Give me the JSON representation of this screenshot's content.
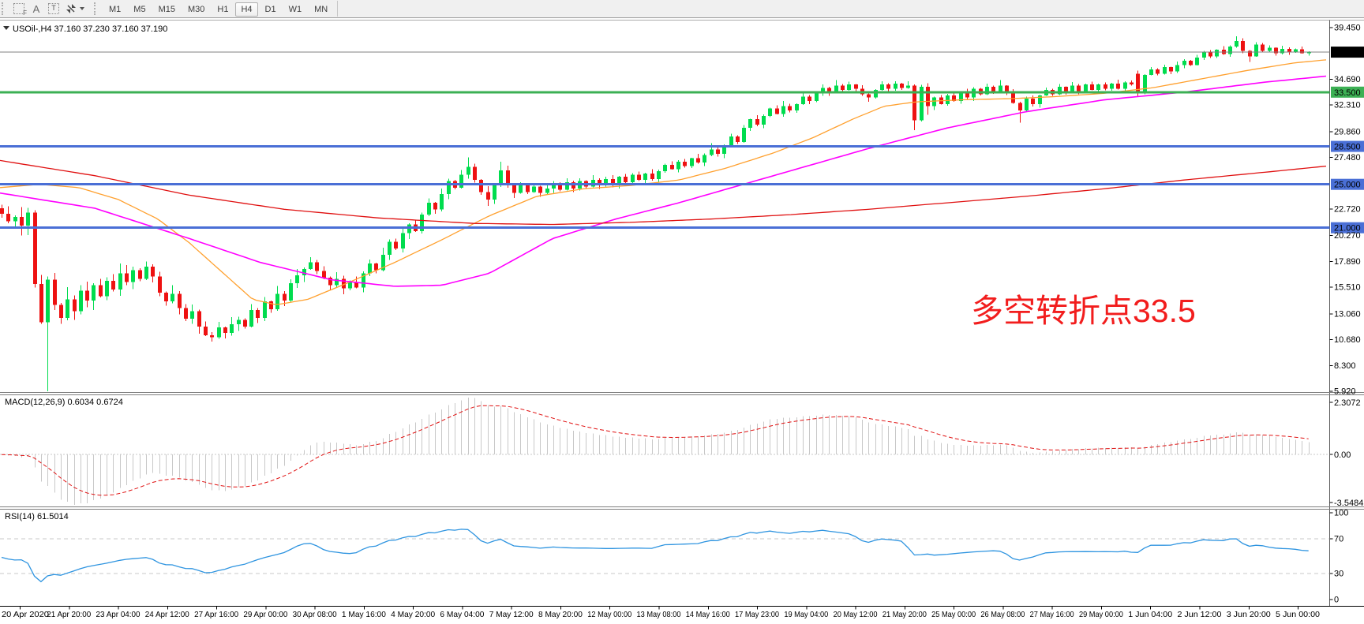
{
  "toolbar": {
    "icons": [
      {
        "name": "selection-f-icon",
        "glyph": "F"
      },
      {
        "name": "font-a-icon",
        "glyph": "A"
      },
      {
        "name": "text-box-icon",
        "glyph": "T"
      },
      {
        "name": "arrow-tools-icon",
        "glyph": ""
      }
    ],
    "timeframes": [
      "M1",
      "M5",
      "M15",
      "M30",
      "H1",
      "H4",
      "D1",
      "W1",
      "MN"
    ],
    "active_timeframe": "H4"
  },
  "chart": {
    "title": {
      "symbol": "USOil-",
      "period": "H4",
      "ohlc": "37.160 37.230 37.160 37.190",
      "title_text": "USOil-,H4  37.160 37.230 37.160 37.190"
    },
    "annotation": {
      "text": "多空转折点33.5",
      "color": "#f21d1d"
    },
    "y_ticks": [
      "39.450",
      "34.690",
      "32.310",
      "29.860",
      "27.480",
      "22.720",
      "20.270",
      "17.890",
      "15.510",
      "13.060",
      "10.680",
      "8.300",
      "5.920"
    ],
    "hlines": [
      {
        "price": 37.19,
        "label": "37.190",
        "kind": "last-price",
        "color": "#808080",
        "box": "#000000",
        "fg": "#ffffff",
        "w": 1
      },
      {
        "price": 33.5,
        "label": "33.500",
        "kind": "level",
        "color": "#3CB054",
        "box": "#3CB054",
        "fg": "#ffffff",
        "w": 3
      },
      {
        "price": 28.5,
        "label": "28.500",
        "kind": "level",
        "color": "#4A6FD6",
        "box": "#4A6FD6",
        "fg": "#ffffff",
        "w": 3
      },
      {
        "price": 25.0,
        "label": "25.000",
        "kind": "level",
        "color": "#4A6FD6",
        "box": "#4A6FD6",
        "fg": "#ffffff",
        "w": 3
      },
      {
        "price": 21.0,
        "label": "21.000",
        "kind": "level",
        "color": "#4A6FD6",
        "box": "#4A6FD6",
        "fg": "#ffffff",
        "w": 3
      }
    ],
    "ma_lines": [
      {
        "name": "ma-orange",
        "color": "#FFA02E",
        "width": 1.3,
        "anchors": [
          [
            0,
            24.7
          ],
          [
            50,
            25.0
          ],
          [
            100,
            24.7
          ],
          [
            150,
            23.6
          ],
          [
            200,
            21.8
          ],
          [
            240,
            19.6
          ],
          [
            280,
            17.0
          ],
          [
            320,
            14.4
          ],
          [
            350,
            13.9
          ],
          [
            390,
            14.4
          ],
          [
            440,
            15.9
          ],
          [
            500,
            17.8
          ],
          [
            560,
            19.9
          ],
          [
            620,
            22.1
          ],
          [
            680,
            23.9
          ],
          [
            740,
            24.6
          ],
          [
            800,
            24.9
          ],
          [
            860,
            25.4
          ],
          [
            920,
            26.5
          ],
          [
            980,
            27.9
          ],
          [
            1030,
            29.3
          ],
          [
            1080,
            31.0
          ],
          [
            1120,
            32.2
          ],
          [
            1160,
            32.6
          ],
          [
            1220,
            32.8
          ],
          [
            1280,
            32.9
          ],
          [
            1340,
            33.1
          ],
          [
            1400,
            33.4
          ],
          [
            1460,
            33.9
          ],
          [
            1520,
            34.7
          ],
          [
            1580,
            35.5
          ],
          [
            1640,
            36.2
          ],
          [
            1683,
            36.5
          ]
        ]
      },
      {
        "name": "ma-magenta",
        "color": "#FF00FF",
        "width": 1.6,
        "anchors": [
          [
            0,
            24.2
          ],
          [
            120,
            22.8
          ],
          [
            240,
            20.0
          ],
          [
            330,
            17.8
          ],
          [
            420,
            16.2
          ],
          [
            500,
            15.6
          ],
          [
            560,
            15.7
          ],
          [
            620,
            16.8
          ],
          [
            700,
            20.0
          ],
          [
            780,
            21.8
          ],
          [
            860,
            23.3
          ],
          [
            980,
            25.8
          ],
          [
            1100,
            28.3
          ],
          [
            1200,
            30.2
          ],
          [
            1300,
            31.7
          ],
          [
            1400,
            32.8
          ],
          [
            1500,
            33.5
          ],
          [
            1600,
            34.4
          ],
          [
            1683,
            35.0
          ]
        ]
      },
      {
        "name": "ma-red",
        "color": "#E01010",
        "width": 1.3,
        "anchors": [
          [
            0,
            27.2
          ],
          [
            120,
            25.8
          ],
          [
            240,
            24.0
          ],
          [
            360,
            22.7
          ],
          [
            480,
            21.9
          ],
          [
            600,
            21.4
          ],
          [
            700,
            21.3
          ],
          [
            800,
            21.5
          ],
          [
            900,
            21.8
          ],
          [
            1000,
            22.2
          ],
          [
            1100,
            22.7
          ],
          [
            1200,
            23.3
          ],
          [
            1300,
            23.9
          ],
          [
            1400,
            24.6
          ],
          [
            1500,
            25.4
          ],
          [
            1600,
            26.1
          ],
          [
            1683,
            26.7
          ]
        ]
      }
    ]
  },
  "chart_data": {
    "type": "candlestick",
    "symbol": "USOil",
    "period": "H4",
    "bull_color": "#00DC4E",
    "bear_color": "#EE1111",
    "open_first": 22.8,
    "closes": [
      22.3,
      21.6,
      22.0,
      21.2,
      22.4,
      15.8,
      12.3,
      16.2,
      13.9,
      12.7,
      14.4,
      13.3,
      15.2,
      14.3,
      15.7,
      14.7,
      16.1,
      15.3,
      16.8,
      16.0,
      17.1,
      16.3,
      17.4,
      16.5,
      15.0,
      14.2,
      14.9,
      13.6,
      12.6,
      13.3,
      11.9,
      11.1,
      10.9,
      11.8,
      11.3,
      12.1,
      12.5,
      11.9,
      13.4,
      12.7,
      14.2,
      13.5,
      14.9,
      14.3,
      15.9,
      16.6,
      17.2,
      17.8,
      17.0,
      16.4,
      15.7,
      16.3,
      15.4,
      16.0,
      15.5,
      16.8,
      17.7,
      17.1,
      18.5,
      19.7,
      19.1,
      20.5,
      21.3,
      20.7,
      22.2,
      23.3,
      22.7,
      24.1,
      25.3,
      24.7,
      25.9,
      26.6,
      25.4,
      24.3,
      23.6,
      24.9,
      26.3,
      25.0,
      24.2,
      24.9,
      24.3,
      24.8,
      24.2,
      24.6,
      25.1,
      24.5,
      25.2,
      24.6,
      25.3,
      24.8,
      25.4,
      24.9,
      25.5,
      25.0,
      25.7,
      25.2,
      25.9,
      25.4,
      26.0,
      25.5,
      26.2,
      26.8,
      26.4,
      27.1,
      26.7,
      27.4,
      27.0,
      27.7,
      28.2,
      27.8,
      28.6,
      29.4,
      28.9,
      30.2,
      31.0,
      30.5,
      31.3,
      32.0,
      31.5,
      32.2,
      31.8,
      32.4,
      33.1,
      32.7,
      33.4,
      33.9,
      33.5,
      34.1,
      33.7,
      34.2,
      33.8,
      33.3,
      33.0,
      33.7,
      34.2,
      33.8,
      34.3,
      33.9,
      34.1,
      30.9,
      34.0,
      32.2,
      33.0,
      32.4,
      33.2,
      32.7,
      33.5,
      33.0,
      33.8,
      33.3,
      34.0,
      33.6,
      34.1,
      33.4,
      32.5,
      31.8,
      32.9,
      32.4,
      33.2,
      33.7,
      33.3,
      34.0,
      33.5,
      34.1,
      33.6,
      34.2,
      33.7,
      34.2,
      33.8,
      34.3,
      33.8,
      34.4,
      34.2,
      33.6,
      35.1,
      35.6,
      35.2,
      35.8,
      35.4,
      36.0,
      36.4,
      36.0,
      36.7,
      37.2,
      36.8,
      37.4,
      37.0,
      37.7,
      38.2,
      37.3,
      36.8,
      37.9,
      37.3,
      37.6,
      37.1,
      37.5,
      37.2,
      37.45,
      37.1,
      37.19
    ],
    "wick_up": [
      0.25,
      0.5,
      0.1,
      0.65,
      0.3,
      0.15,
      0.55,
      0.2,
      0.4,
      0.1,
      0.75,
      0.25,
      0.35,
      0.6,
      0.15,
      0.45
    ],
    "wick_dn": [
      0.35,
      0.15,
      0.55,
      0.2,
      0.45,
      0.65,
      0.1,
      0.3,
      0.15,
      0.5,
      0.25,
      0.6,
      0.2,
      0.1,
      0.5,
      0.3
    ],
    "wick_scale_anchors": [
      [
        0,
        1.3
      ],
      [
        8,
        1.6
      ],
      [
        20,
        1.1
      ],
      [
        40,
        1.0
      ],
      [
        60,
        0.85
      ],
      [
        90,
        0.6
      ],
      [
        120,
        0.55
      ],
      [
        150,
        0.5
      ],
      [
        199,
        0.45
      ]
    ],
    "overrides": {
      "3": {
        "low": 20.3
      },
      "7": {
        "low": 5.92
      },
      "18": {
        "high": 17.7
      },
      "22": {
        "high": 17.9
      },
      "32": {
        "low": 10.5
      },
      "47": {
        "high": 18.3
      },
      "71": {
        "high": 27.5
      },
      "74": {
        "low": 23.0
      },
      "76": {
        "high": 27.1
      },
      "108": {
        "high": 28.8
      },
      "119": {
        "high": 32.7
      },
      "127": {
        "high": 34.6
      },
      "132": {
        "low": 32.6
      },
      "139": {
        "low": 30.0
      },
      "141": {
        "low": 31.4
      },
      "152": {
        "high": 34.6
      },
      "155": {
        "low": 30.7
      },
      "173": {
        "open": 35.2,
        "low": 33.1
      },
      "188": {
        "high": 38.65
      },
      "190": {
        "low": 36.3
      }
    },
    "x_labels": [
      "20 Apr 2020",
      "21 Apr 20:00",
      "23 Apr 04:00",
      "24 Apr 12:00",
      "27 Apr 16:00",
      "29 Apr 00:00",
      "30 Apr 08:00",
      "1 May 16:00",
      "4 May 20:00",
      "6 May 04:00",
      "7 May 12:00",
      "8 May 20:00",
      "12 May 00:00",
      "13 May 08:00",
      "14 May 16:00",
      "17 May 23:00",
      "19 May 04:00",
      "20 May 12:00",
      "21 May 20:00",
      "25 May 00:00",
      "26 May 08:00",
      "27 May 16:00",
      "29 May 00:00",
      "1 Jun 04:00",
      "2 Jun 12:00",
      "3 Jun 20:00",
      "5 Jun 00:00"
    ],
    "y_axis_range": [
      5.92,
      39.45
    ]
  },
  "macd": {
    "label_text": "MACD(12,26,9) 0.6034 0.6724",
    "params": {
      "fast": 12,
      "slow": 26,
      "signal": 9
    },
    "y_tick_max": "2.3072",
    "y_tick_zero": "0.00",
    "y_tick_min": "-3.5484",
    "hist_color": "#C8C8C8",
    "signal_color": "#E01010"
  },
  "rsi": {
    "label_text": "RSI(14) 61.5014",
    "period": 14,
    "levels": [
      70,
      30
    ],
    "y_ticks": [
      "100",
      "70",
      "30",
      "0"
    ],
    "line_color": "#2E94E0"
  }
}
